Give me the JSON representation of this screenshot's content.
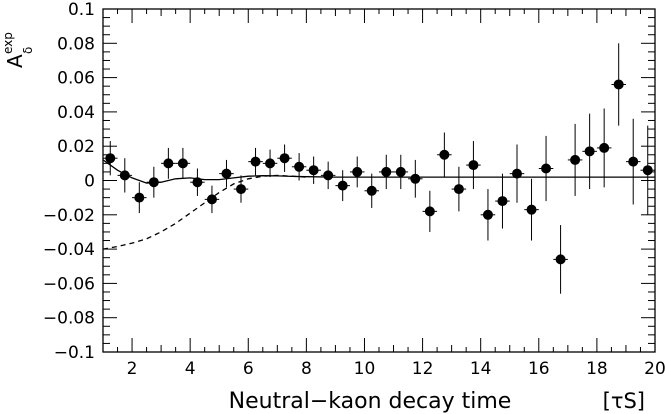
{
  "chart_data": {
    "type": "scatter",
    "xlabel": "Neutral−kaon decay time",
    "xunit": "[τS]",
    "ylabel": "Aδexp",
    "ylabel_parts": {
      "main": "A",
      "sub": "δ",
      "sup": "exp"
    },
    "xlim": [
      1,
      20
    ],
    "ylim": [
      -0.1,
      0.1
    ],
    "x_ticks": [
      2,
      4,
      6,
      8,
      10,
      12,
      14,
      16,
      18,
      20
    ],
    "x_tick_labels": [
      "2",
      "4",
      "6",
      "8",
      "10",
      "12",
      "14",
      "16",
      "18",
      "20"
    ],
    "y_ticks": [
      -0.1,
      -0.08,
      -0.06,
      -0.04,
      -0.02,
      0,
      0.02,
      0.04,
      0.06,
      0.08,
      0.1
    ],
    "y_tick_labels": [
      "−0.1",
      "−0.08",
      "−0.06",
      "−0.04",
      "−0.02",
      "0",
      "0.02",
      "0.04",
      "0.06",
      "0.08",
      "0.1"
    ],
    "grid": false,
    "points": [
      {
        "x": 1.25,
        "y": 0.013,
        "err": 0.01
      },
      {
        "x": 1.75,
        "y": 0.003,
        "err": 0.01
      },
      {
        "x": 2.25,
        "y": -0.01,
        "err": 0.009
      },
      {
        "x": 2.75,
        "y": -0.001,
        "err": 0.009
      },
      {
        "x": 3.25,
        "y": 0.01,
        "err": 0.009
      },
      {
        "x": 3.75,
        "y": 0.01,
        "err": 0.009
      },
      {
        "x": 4.25,
        "y": -0.001,
        "err": 0.008
      },
      {
        "x": 4.75,
        "y": -0.011,
        "err": 0.008
      },
      {
        "x": 5.25,
        "y": 0.004,
        "err": 0.008
      },
      {
        "x": 5.75,
        "y": -0.005,
        "err": 0.008
      },
      {
        "x": 6.25,
        "y": 0.011,
        "err": 0.008
      },
      {
        "x": 6.75,
        "y": 0.01,
        "err": 0.008
      },
      {
        "x": 7.25,
        "y": 0.013,
        "err": 0.008
      },
      {
        "x": 7.75,
        "y": 0.008,
        "err": 0.008
      },
      {
        "x": 8.25,
        "y": 0.006,
        "err": 0.008
      },
      {
        "x": 8.75,
        "y": 0.003,
        "err": 0.008
      },
      {
        "x": 9.25,
        "y": -0.003,
        "err": 0.009
      },
      {
        "x": 9.75,
        "y": 0.005,
        "err": 0.009
      },
      {
        "x": 10.25,
        "y": -0.006,
        "err": 0.01
      },
      {
        "x": 10.75,
        "y": 0.005,
        "err": 0.01
      },
      {
        "x": 11.25,
        "y": 0.005,
        "err": 0.01
      },
      {
        "x": 11.75,
        "y": 0.001,
        "err": 0.011
      },
      {
        "x": 12.25,
        "y": -0.018,
        "err": 0.012
      },
      {
        "x": 12.75,
        "y": 0.015,
        "err": 0.013
      },
      {
        "x": 13.25,
        "y": -0.005,
        "err": 0.013
      },
      {
        "x": 13.75,
        "y": 0.009,
        "err": 0.014
      },
      {
        "x": 14.25,
        "y": -0.02,
        "err": 0.015
      },
      {
        "x": 14.75,
        "y": -0.012,
        "err": 0.016
      },
      {
        "x": 15.25,
        "y": 0.004,
        "err": 0.017
      },
      {
        "x": 15.75,
        "y": -0.017,
        "err": 0.018
      },
      {
        "x": 16.25,
        "y": 0.007,
        "err": 0.019
      },
      {
        "x": 16.75,
        "y": -0.046,
        "err": 0.02
      },
      {
        "x": 17.25,
        "y": 0.012,
        "err": 0.021
      },
      {
        "x": 17.75,
        "y": 0.017,
        "err": 0.022
      },
      {
        "x": 18.25,
        "y": 0.019,
        "err": 0.023
      },
      {
        "x": 18.75,
        "y": 0.056,
        "err": 0.024
      },
      {
        "x": 19.25,
        "y": 0.011,
        "err": 0.025
      },
      {
        "x": 19.75,
        "y": 0.006,
        "err": 0.026
      }
    ],
    "series": [
      {
        "style": "solid",
        "x": [
          1,
          1.5,
          2,
          2.5,
          3,
          3.5,
          4,
          4.5,
          5,
          5.5,
          6,
          6.5,
          7,
          7.5,
          8,
          9,
          10,
          12,
          14,
          16,
          18,
          20
        ],
        "y": [
          0.012,
          0.006,
          0.0015,
          -0.0015,
          -0.001,
          0.001,
          0.0015,
          0.0005,
          0.0005,
          0.0015,
          0.0025,
          0.0028,
          0.0027,
          0.0024,
          0.0022,
          0.002,
          0.002,
          0.002,
          0.002,
          0.002,
          0.002,
          0.002
        ]
      },
      {
        "style": "dashed",
        "x": [
          1,
          1.5,
          2,
          2.5,
          3,
          3.5,
          4,
          4.5,
          5,
          5.5,
          6,
          6.5,
          7,
          7.5,
          8
        ],
        "y": [
          -0.04,
          -0.0385,
          -0.0365,
          -0.034,
          -0.03,
          -0.025,
          -0.019,
          -0.013,
          -0.007,
          -0.002,
          0.001,
          0.0025,
          0.003,
          0.0025,
          0.002
        ]
      }
    ]
  }
}
